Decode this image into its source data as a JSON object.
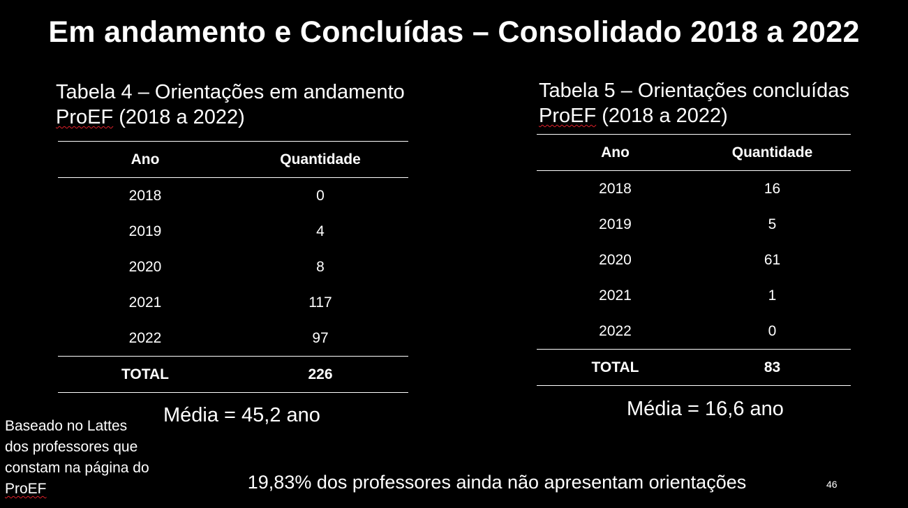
{
  "slide": {
    "title": "Em andamento e Concluídas – Consolidado 2018 a 2022",
    "page_number": "46",
    "note": {
      "line1": "Baseado no Lattes",
      "line2": "dos professores que",
      "line3": "constam na página do",
      "line4": "ProEF"
    },
    "footer": "19,83% dos professores ainda não apresentam orientações"
  },
  "table4": {
    "caption_line1": "Tabela 4 – Orientações em andamento",
    "caption_program": "ProEF",
    "caption_years": " (2018 a 2022)",
    "header": {
      "year": "Ano",
      "quantity": "Quantidade"
    },
    "rows": [
      {
        "year": "2018",
        "quantity": "0"
      },
      {
        "year": "2019",
        "quantity": "4"
      },
      {
        "year": "2020",
        "quantity": "8"
      },
      {
        "year": "2021",
        "quantity": "117"
      },
      {
        "year": "2022",
        "quantity": "97"
      }
    ],
    "total": {
      "label": "TOTAL",
      "value": "226"
    },
    "mean": "Média = 45,2 ano"
  },
  "table5": {
    "caption_line1": "Tabela 5 – Orientações concluídas",
    "caption_program": "ProEF",
    "caption_years": " (2018 a 2022)",
    "header": {
      "year": "Ano",
      "quantity": "Quantidade"
    },
    "rows": [
      {
        "year": "2018",
        "quantity": "16"
      },
      {
        "year": "2019",
        "quantity": "5"
      },
      {
        "year": "2020",
        "quantity": "61"
      },
      {
        "year": "2021",
        "quantity": "1"
      },
      {
        "year": "2022",
        "quantity": "0"
      }
    ],
    "total": {
      "label": "TOTAL",
      "value": "83"
    },
    "mean": "Média = 16,6 ano"
  }
}
